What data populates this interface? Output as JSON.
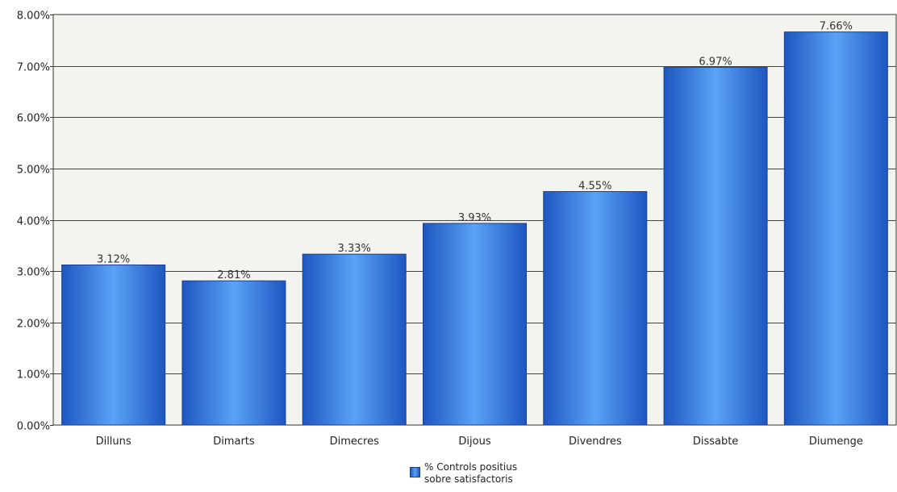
{
  "chart_data": {
    "type": "bar",
    "categories": [
      "Dilluns",
      "Dimarts",
      "Dimecres",
      "Dijous",
      "Divendres",
      "Dissabte",
      "Diumenge"
    ],
    "series": [
      {
        "name": "% Controls positius sobre satisfactoris",
        "values": [
          3.12,
          2.81,
          3.33,
          3.93,
          4.55,
          6.97,
          7.66
        ],
        "labels": [
          "3.12%",
          "2.81%",
          "3.33%",
          "3.93%",
          "4.55%",
          "6.97%",
          "7.66%"
        ]
      }
    ],
    "ylim": [
      0,
      8
    ],
    "yticks": [
      0,
      1,
      2,
      3,
      4,
      5,
      6,
      7,
      8
    ],
    "ytick_labels": [
      "0.00%",
      "1.00%",
      "2.00%",
      "3.00%",
      "4.00%",
      "5.00%",
      "6.00%",
      "7.00%",
      "8.00%"
    ],
    "title": "",
    "xlabel": "",
    "ylabel": "",
    "grid": true,
    "legend_position": "bottom",
    "colors": {
      "bar_dark": "#1d56c0",
      "bar_light": "#5aa3f6",
      "bar_border": "#1f3f8c",
      "plot_background": "#f3f3ef",
      "gridline": "#444444"
    }
  },
  "legend": {
    "line1": "% Controls positius",
    "line2": "sobre satisfactoris"
  }
}
